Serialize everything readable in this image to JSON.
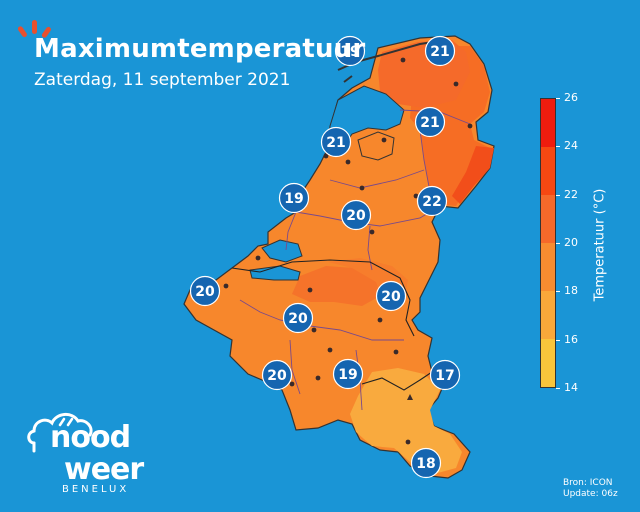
{
  "header": {
    "title": "Maximumtemperatuur",
    "subtitle": "Zaterdag, 11 september 2021"
  },
  "legend": {
    "title": "Temperatuur (°C)",
    "ticks": [
      "26",
      "24",
      "22",
      "20",
      "18",
      "16",
      "14"
    ],
    "range": [
      14,
      26
    ],
    "bands": [
      {
        "from": 24,
        "to": 26,
        "color": "#ee1c0e"
      },
      {
        "from": 22,
        "to": 24,
        "color": "#f64812"
      },
      {
        "from": 20,
        "to": 22,
        "color": "#f5692a"
      },
      {
        "from": 18,
        "to": 20,
        "color": "#f78c30"
      },
      {
        "from": 16,
        "to": 18,
        "color": "#f9a83a"
      },
      {
        "from": 14,
        "to": 16,
        "color": "#f9c53b"
      }
    ]
  },
  "stations": [
    "19",
    "21",
    "21",
    "21",
    "19",
    "20",
    "22",
    "20",
    "20",
    "20",
    "20",
    "19",
    "17",
    "18"
  ],
  "logo": {
    "line1": "nood",
    "line2": "weer",
    "line3": "BENELUX"
  },
  "credits": {
    "source": "Bron: ICON",
    "update": "Update: 06z"
  },
  "colors": {
    "sea": "#1a95d6",
    "badge": "#1565b0",
    "border": "#7a4a8a",
    "accent": "#e8502f"
  }
}
